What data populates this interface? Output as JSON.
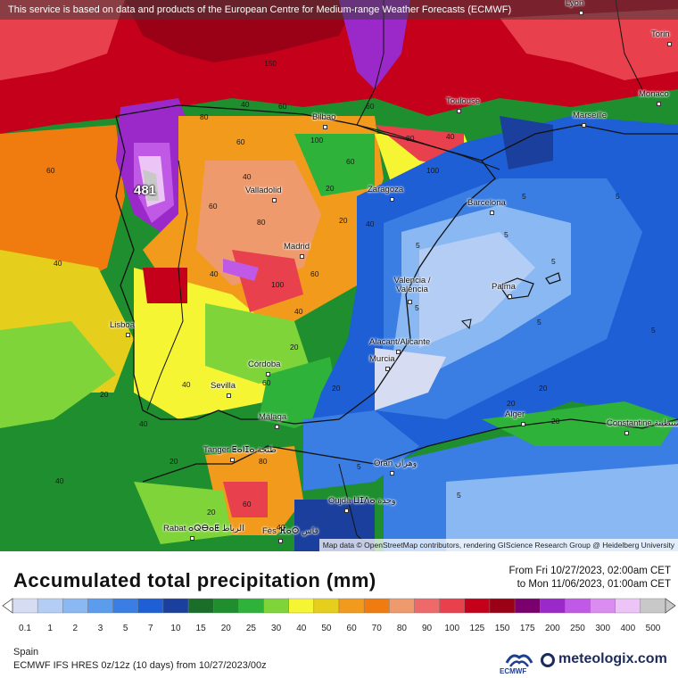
{
  "notice": "This service is based on data and products of the European Centre for Medium-range Weather Forecasts (ECMWF)",
  "attribution": "Map data © OpenStreetMap contributors, rendering GIScience Research Group @ Heidelberg University",
  "title": "Accumulated total precipitation (mm)",
  "period": {
    "from": "From Fri 10/27/2023, 02:00am CET",
    "to": "to Mon 11/06/2023, 01:00am CET"
  },
  "region": "Spain",
  "model": "ECMWF IFS HRES 0z/12z (10 days) from 10/27/2023/00z",
  "brand": {
    "ecmwf": "ECMWF",
    "meteologix": "meteologix.com"
  },
  "max_label": "481",
  "cities": [
    {
      "name": "Lyon"
    },
    {
      "name": "Torin"
    },
    {
      "name": "Monaco"
    },
    {
      "name": "Bilbao"
    },
    {
      "name": "Toulouse"
    },
    {
      "name": "Marseille"
    },
    {
      "name": "Valladolid"
    },
    {
      "name": "Zaragoza"
    },
    {
      "name": "Barcelona"
    },
    {
      "name": "Madrid"
    },
    {
      "name": "Valencia / València"
    },
    {
      "name": "Palma"
    },
    {
      "name": "Lisboa"
    },
    {
      "name": "Alacant/Alicante"
    },
    {
      "name": "Murcia"
    },
    {
      "name": "Córdoba"
    },
    {
      "name": "Sevilla"
    },
    {
      "name": "Málaga"
    },
    {
      "name": "Alger"
    },
    {
      "name": "Constantine قسنطينة"
    },
    {
      "name": "Tanger ⵟⴰⵏⵊⴰ طنجة"
    },
    {
      "name": "Oran وهران"
    },
    {
      "name": "Oujda ⵡⵊⴷⴰ وجدة"
    },
    {
      "name": "Rabat ⴰⵕⴱⴰⵟ الرباط"
    },
    {
      "name": "Fès ⴼⴰⵙ فاس"
    }
  ],
  "scale": {
    "ticks": [
      "0.1",
      "1",
      "2",
      "3",
      "5",
      "7",
      "10",
      "15",
      "20",
      "25",
      "30",
      "40",
      "50",
      "60",
      "70",
      "80",
      "90",
      "100",
      "125",
      "150",
      "175",
      "200",
      "250",
      "300",
      "400",
      "500"
    ],
    "colors": [
      "#d6dcf2",
      "#b4cdf5",
      "#8ab8f2",
      "#5b9cec",
      "#3a7ee3",
      "#1f5fd6",
      "#1b3f9c",
      "#1a6e2a",
      "#1e8e2e",
      "#2fb23a",
      "#7fd43a",
      "#f5f534",
      "#e6cf1c",
      "#f29a1c",
      "#f07c10",
      "#ef9a6c",
      "#ee6a6a",
      "#e8404c",
      "#c4001a",
      "#9a0016",
      "#7a006e",
      "#9b28c9",
      "#c05ae6",
      "#da8cf0",
      "#ecc4f5",
      "#c8c8c8"
    ]
  },
  "map_values": [
    {
      "v": "150"
    },
    {
      "v": "60"
    },
    {
      "v": "40"
    },
    {
      "v": "80"
    },
    {
      "v": "100"
    },
    {
      "v": "60"
    },
    {
      "v": "40"
    },
    {
      "v": "80"
    },
    {
      "v": "60"
    },
    {
      "v": "40"
    },
    {
      "v": "60"
    },
    {
      "v": "20"
    },
    {
      "v": "60"
    },
    {
      "v": "80"
    },
    {
      "v": "100"
    },
    {
      "v": "60"
    },
    {
      "v": "40"
    },
    {
      "v": "20"
    },
    {
      "v": "40"
    },
    {
      "v": "60"
    },
    {
      "v": "40"
    },
    {
      "v": "20"
    },
    {
      "v": "40"
    },
    {
      "v": "60"
    },
    {
      "v": "20"
    },
    {
      "v": "20"
    },
    {
      "v": "5"
    },
    {
      "v": "5"
    },
    {
      "v": "5"
    },
    {
      "v": "5"
    },
    {
      "v": "5"
    },
    {
      "v": "5"
    },
    {
      "v": "5"
    },
    {
      "v": "5"
    },
    {
      "v": "20"
    },
    {
      "v": "20"
    },
    {
      "v": "5"
    },
    {
      "v": "5"
    },
    {
      "v": "40"
    },
    {
      "v": "20"
    },
    {
      "v": "40"
    },
    {
      "v": "20"
    },
    {
      "v": "40"
    },
    {
      "v": "20"
    },
    {
      "v": "60"
    },
    {
      "v": "80"
    },
    {
      "v": "100"
    },
    {
      "v": "40"
    }
  ]
}
